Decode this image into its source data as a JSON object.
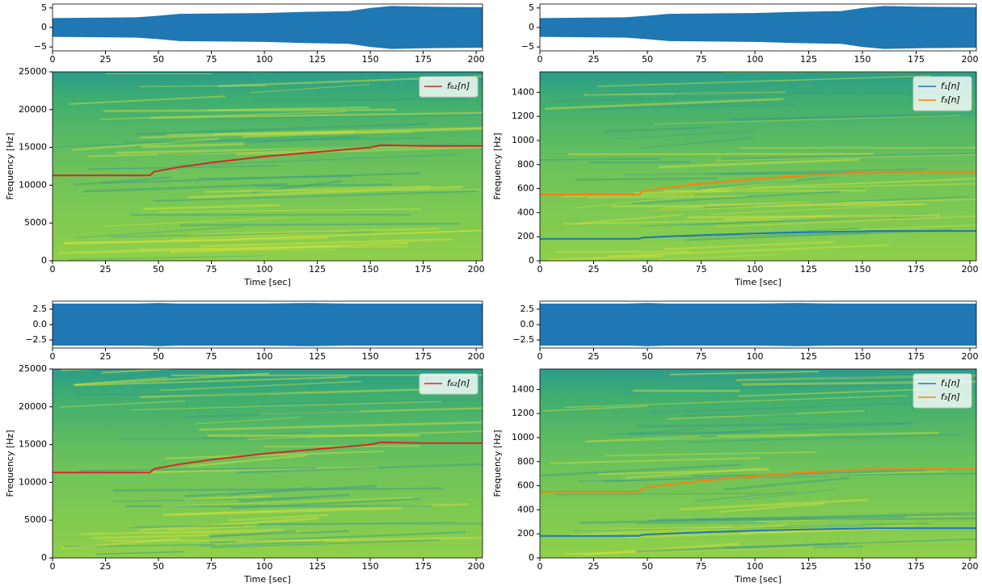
{
  "chart_data": [
    {
      "type": "waveform",
      "x": [
        0,
        20,
        40,
        50,
        60,
        80,
        100,
        120,
        140,
        150,
        160,
        180,
        203
      ],
      "values": [
        2.4,
        2.5,
        2.6,
        3.0,
        3.5,
        3.6,
        3.7,
        4.0,
        4.2,
        5.0,
        5.5,
        5.3,
        5.2
      ],
      "color": "#1f77b4",
      "xlim": [
        0,
        203
      ],
      "ylim": [
        -6,
        6
      ],
      "xticks": [
        0,
        25,
        50,
        75,
        100,
        125,
        150,
        175,
        200
      ],
      "yticks": [
        {
          "value": -5,
          "label": "−5"
        },
        0,
        5
      ]
    },
    {
      "type": "waveform",
      "x": [
        0,
        20,
        40,
        50,
        60,
        80,
        100,
        120,
        140,
        150,
        160,
        180,
        203
      ],
      "values": [
        2.4,
        2.5,
        2.6,
        3.0,
        3.5,
        3.6,
        3.7,
        4.0,
        4.2,
        5.0,
        5.5,
        5.3,
        5.2
      ],
      "color": "#1f77b4",
      "xlim": [
        0,
        203
      ],
      "ylim": [
        -6,
        6
      ],
      "xticks": [
        0,
        25,
        50,
        75,
        100,
        125,
        150,
        175,
        200
      ],
      "yticks": [
        {
          "value": -5,
          "label": "−5"
        },
        0,
        5
      ]
    },
    {
      "type": "spectrogram",
      "x": [
        0,
        46,
        48,
        60,
        75,
        100,
        125,
        150,
        155,
        175,
        203
      ],
      "xlabel": "Time [sec]",
      "ylabel": "Frequency [Hz]",
      "series": [
        {
          "name": "f₆₂[n]",
          "color": "#d62728",
          "values": [
            11300,
            11300,
            11800,
            12400,
            13000,
            13800,
            14400,
            15000,
            15300,
            15200,
            15200
          ]
        }
      ],
      "xlim": [
        0,
        203
      ],
      "ylim": [
        0,
        25000
      ],
      "xticks": [
        0,
        25,
        50,
        75,
        100,
        125,
        150,
        175,
        200
      ],
      "yticks": [
        0,
        5000,
        10000,
        15000,
        20000,
        25000
      ],
      "legend": "upper right"
    },
    {
      "type": "spectrogram",
      "x": [
        0,
        46,
        48,
        60,
        75,
        100,
        125,
        150,
        155,
        175,
        203
      ],
      "xlabel": "Time [sec]",
      "ylabel": "Frequency [Hz]",
      "series": [
        {
          "name": "f₁[n]",
          "color": "#1f77b4",
          "values": [
            183,
            183,
            193,
            203,
            213,
            227,
            237,
            245,
            247,
            247,
            247
          ]
        },
        {
          "name": "f₃[n]",
          "color": "#ff7f0e",
          "values": [
            550,
            550,
            580,
            610,
            640,
            680,
            710,
            735,
            740,
            740,
            740
          ]
        }
      ],
      "xlim": [
        0,
        203
      ],
      "ylim": [
        0,
        1570
      ],
      "xticks": [
        0,
        25,
        50,
        75,
        100,
        125,
        150,
        175,
        200
      ],
      "yticks": [
        0,
        200,
        400,
        600,
        800,
        1000,
        1200,
        1400
      ],
      "legend": "upper right"
    },
    {
      "type": "waveform",
      "x": [
        0,
        20,
        40,
        50,
        60,
        80,
        100,
        120,
        140,
        150,
        160,
        180,
        203
      ],
      "values": [
        3.4,
        3.4,
        3.4,
        3.5,
        3.4,
        3.4,
        3.4,
        3.5,
        3.4,
        3.4,
        3.4,
        3.4,
        3.4
      ],
      "color": "#1f77b4",
      "xlim": [
        0,
        203
      ],
      "ylim": [
        -3.8,
        3.8
      ],
      "xticks": [
        0,
        25,
        50,
        75,
        100,
        125,
        150,
        175,
        200
      ],
      "yticks": [
        {
          "value": -2.5,
          "label": "−2.5"
        },
        {
          "value": 0,
          "label": "0.0"
        },
        2.5
      ]
    },
    {
      "type": "waveform",
      "x": [
        0,
        20,
        40,
        50,
        60,
        80,
        100,
        120,
        140,
        150,
        160,
        180,
        203
      ],
      "values": [
        3.4,
        3.4,
        3.4,
        3.5,
        3.4,
        3.4,
        3.4,
        3.5,
        3.4,
        3.4,
        3.4,
        3.4,
        3.4
      ],
      "color": "#1f77b4",
      "xlim": [
        0,
        203
      ],
      "ylim": [
        -3.8,
        3.8
      ],
      "xticks": [
        0,
        25,
        50,
        75,
        100,
        125,
        150,
        175,
        200
      ],
      "yticks": [
        {
          "value": -2.5,
          "label": "−2.5"
        },
        {
          "value": 0,
          "label": "0.0"
        },
        2.5
      ]
    },
    {
      "type": "spectrogram",
      "x": [
        0,
        46,
        48,
        60,
        75,
        100,
        125,
        150,
        155,
        175,
        203
      ],
      "xlabel": "Time [sec]",
      "ylabel": "Frequency [Hz]",
      "series": [
        {
          "name": "f₆₂[n]",
          "color": "#d62728",
          "values": [
            11300,
            11300,
            11800,
            12400,
            13000,
            13800,
            14400,
            15000,
            15300,
            15200,
            15200
          ]
        }
      ],
      "xlim": [
        0,
        203
      ],
      "ylim": [
        0,
        25000
      ],
      "xticks": [
        0,
        25,
        50,
        75,
        100,
        125,
        150,
        175,
        200
      ],
      "yticks": [
        0,
        5000,
        10000,
        15000,
        20000,
        25000
      ],
      "legend": "upper right"
    },
    {
      "type": "spectrogram",
      "x": [
        0,
        46,
        48,
        60,
        75,
        100,
        125,
        150,
        155,
        175,
        203
      ],
      "xlabel": "Time [sec]",
      "ylabel": "Frequency [Hz]",
      "series": [
        {
          "name": "f₁[n]",
          "color": "#1f77b4",
          "values": [
            183,
            183,
            193,
            203,
            213,
            227,
            237,
            245,
            247,
            247,
            247
          ]
        },
        {
          "name": "f₃[n]",
          "color": "#ff7f0e",
          "values": [
            550,
            550,
            580,
            610,
            640,
            680,
            710,
            735,
            740,
            740,
            740
          ]
        }
      ],
      "xlim": [
        0,
        203
      ],
      "ylim": [
        0,
        1570
      ],
      "xticks": [
        0,
        25,
        50,
        75,
        100,
        125,
        150,
        175,
        200
      ],
      "yticks": [
        0,
        200,
        400,
        600,
        800,
        1000,
        1200,
        1400
      ],
      "legend": "upper right"
    }
  ]
}
